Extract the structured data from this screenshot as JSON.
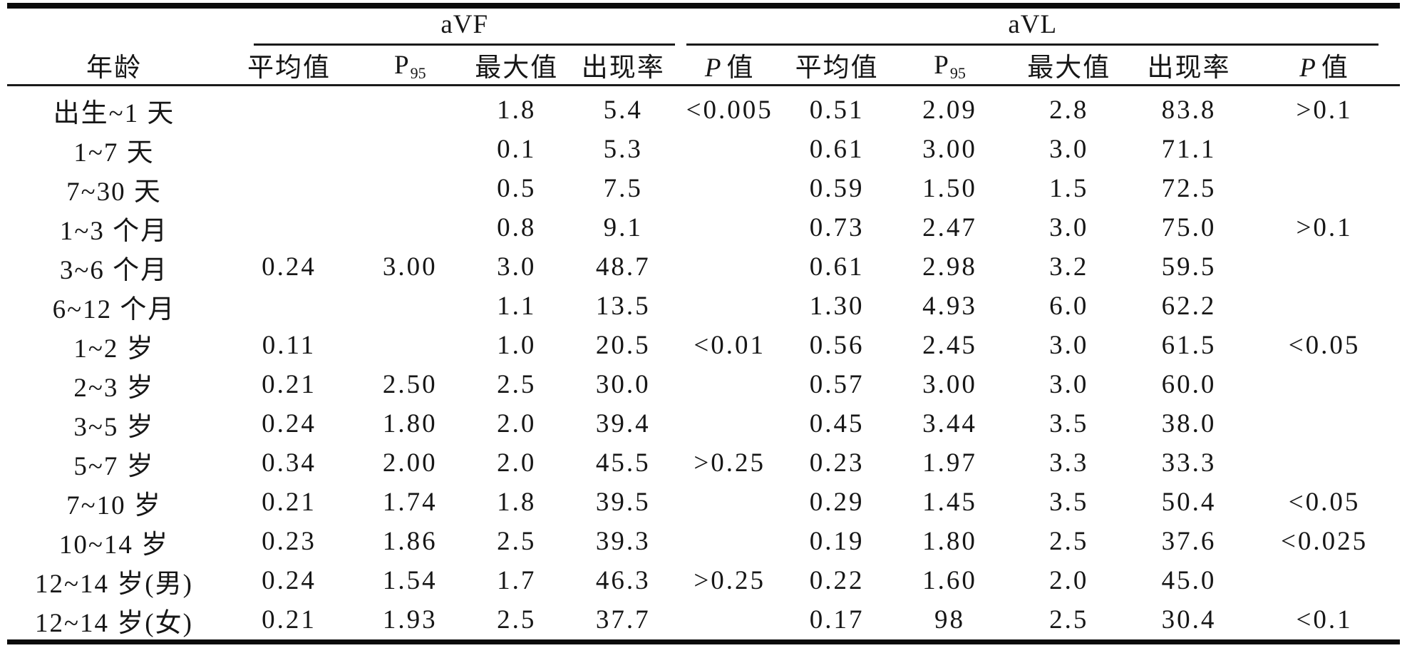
{
  "page": {
    "background_color": "#ffffff",
    "text_color": "#161616",
    "rule_color": "#0b0b0b"
  },
  "table": {
    "age_header": "年龄",
    "groups": [
      {
        "label": "aVF",
        "span": 4
      },
      {
        "label": "aVL",
        "span": 6
      }
    ],
    "sub_columns": [
      {
        "id": "avf-mean",
        "label": "平均值"
      },
      {
        "id": "avf-p95",
        "label": "P",
        "sub": "95"
      },
      {
        "id": "avf-max",
        "label": "最大值"
      },
      {
        "id": "avf-rate",
        "label": "出现率"
      },
      {
        "id": "avf-pvalue",
        "italic": "P",
        "label": "值"
      },
      {
        "id": "avl-mean",
        "label": "平均值"
      },
      {
        "id": "avl-p95",
        "label": "P",
        "sub": "95"
      },
      {
        "id": "avl-max",
        "label": "最大值"
      },
      {
        "id": "avl-rate",
        "label": "出现率"
      },
      {
        "id": "avl-pvalue",
        "italic": "P",
        "label": "值"
      }
    ]
  },
  "chart_data": {
    "type": "table",
    "columns": [
      "年龄",
      "aVF 平均值",
      "aVF P95",
      "aVF 最大值",
      "aVF 出现率",
      "aVF P值",
      "aVL 平均值",
      "aVL P95",
      "aVL 最大值",
      "aVL 出现率",
      "aVL P值"
    ],
    "rows": [
      [
        "出生~1 天",
        "",
        "",
        "1.8",
        "5.4",
        "<0.005",
        "0.51",
        "2.09",
        "2.8",
        "83.8",
        ">0.1"
      ],
      [
        "1~7 天",
        "",
        "",
        "0.1",
        "5.3",
        "",
        "0.61",
        "3.00",
        "3.0",
        "71.1",
        ""
      ],
      [
        "7~30 天",
        "",
        "",
        "0.5",
        "7.5",
        "",
        "0.59",
        "1.50",
        "1.5",
        "72.5",
        ""
      ],
      [
        "1~3 个月",
        "",
        "",
        "0.8",
        "9.1",
        "",
        "0.73",
        "2.47",
        "3.0",
        "75.0",
        ">0.1"
      ],
      [
        "3~6 个月",
        "0.24",
        "3.00",
        "3.0",
        "48.7",
        "",
        "0.61",
        "2.98",
        "3.2",
        "59.5",
        ""
      ],
      [
        "6~12 个月",
        "",
        "",
        "1.1",
        "13.5",
        "",
        "1.30",
        "4.93",
        "6.0",
        "62.2",
        ""
      ],
      [
        "1~2 岁",
        "0.11",
        "",
        "1.0",
        "20.5",
        "<0.01",
        "0.56",
        "2.45",
        "3.0",
        "61.5",
        "<0.05"
      ],
      [
        "2~3 岁",
        "0.21",
        "2.50",
        "2.5",
        "30.0",
        "",
        "0.57",
        "3.00",
        "3.0",
        "60.0",
        ""
      ],
      [
        "3~5 岁",
        "0.24",
        "1.80",
        "2.0",
        "39.4",
        "",
        "0.45",
        "3.44",
        "3.5",
        "38.0",
        ""
      ],
      [
        "5~7 岁",
        "0.34",
        "2.00",
        "2.0",
        "45.5",
        ">0.25",
        "0.23",
        "1.97",
        "3.3",
        "33.3",
        ""
      ],
      [
        "7~10 岁",
        "0.21",
        "1.74",
        "1.8",
        "39.5",
        "",
        "0.29",
        "1.45",
        "3.5",
        "50.4",
        "<0.05"
      ],
      [
        "10~14 岁",
        "0.23",
        "1.86",
        "2.5",
        "39.3",
        "",
        "0.19",
        "1.80",
        "2.5",
        "37.6",
        "<0.025"
      ],
      [
        "12~14 岁(男)",
        "0.24",
        "1.54",
        "1.7",
        "46.3",
        ">0.25",
        "0.22",
        "1.60",
        "2.0",
        "45.0",
        ""
      ],
      [
        "12~14 岁(女)",
        "0.21",
        "1.93",
        "2.5",
        "37.7",
        "",
        "0.17",
        "98",
        "2.5",
        "30.4",
        "<0.1"
      ]
    ]
  }
}
